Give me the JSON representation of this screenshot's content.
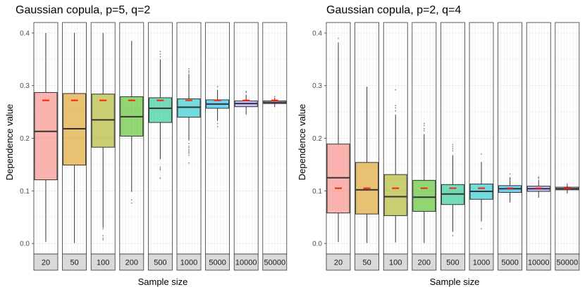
{
  "chart_data": [
    {
      "type": "box",
      "title": "Gaussian copula, p=5, q=2",
      "xlabel": "Sample size",
      "ylabel": "Dependence value",
      "ylim": [
        -0.02,
        0.42
      ],
      "yticks": [
        "0.0",
        "0.1",
        "0.2",
        "0.3",
        "0.4"
      ],
      "ytick_values": [
        0.0,
        0.1,
        0.2,
        0.3,
        0.4
      ],
      "true_value": 0.272,
      "panels": [
        {
          "label": "20",
          "color": "#F8766D",
          "q1": 0.121,
          "median": 0.213,
          "q3": 0.287,
          "whisker_low": 0.003,
          "whisker_high": 0.4,
          "outliers": []
        },
        {
          "label": "50",
          "color": "#D89000",
          "q1": 0.149,
          "median": 0.218,
          "q3": 0.285,
          "whisker_low": 0.001,
          "whisker_high": 0.4,
          "outliers": []
        },
        {
          "label": "100",
          "color": "#A3A500",
          "q1": 0.183,
          "median": 0.235,
          "q3": 0.284,
          "whisker_low": 0.03,
          "whisker_high": 0.4,
          "outliers": [
            0.028,
            0.015,
            0.01,
            0.007
          ]
        },
        {
          "label": "200",
          "color": "#39B600",
          "q1": 0.204,
          "median": 0.241,
          "q3": 0.279,
          "whisker_low": 0.098,
          "whisker_high": 0.385,
          "outliers": [
            0.083,
            0.077
          ]
        },
        {
          "label": "500",
          "color": "#00BF7D",
          "q1": 0.23,
          "median": 0.257,
          "q3": 0.277,
          "whisker_low": 0.16,
          "whisker_high": 0.35,
          "outliers": [
            0.365,
            0.36,
            0.355,
            0.145,
            0.142,
            0.14,
            0.124
          ]
        },
        {
          "label": "1000",
          "color": "#00BFC4",
          "q1": 0.24,
          "median": 0.259,
          "q3": 0.275,
          "whisker_low": 0.196,
          "whisker_high": 0.322,
          "outliers": [
            0.332,
            0.328,
            0.325,
            0.19,
            0.185,
            0.182,
            0.178,
            0.175,
            0.172,
            0.168,
            0.153
          ]
        },
        {
          "label": "5000",
          "color": "#00B0F6",
          "q1": 0.257,
          "median": 0.265,
          "q3": 0.273,
          "whisker_low": 0.233,
          "whisker_high": 0.292,
          "outliers": [
            0.298,
            0.228,
            0.222
          ]
        },
        {
          "label": "10000",
          "color": "#9590FF",
          "q1": 0.26,
          "median": 0.266,
          "q3": 0.271,
          "whisker_low": 0.245,
          "whisker_high": 0.283,
          "outliers": [
            0.289,
            0.287
          ]
        },
        {
          "label": "50000",
          "color": "#E76BF3",
          "q1": 0.266,
          "median": 0.268,
          "q3": 0.271,
          "whisker_low": 0.259,
          "whisker_high": 0.277,
          "outliers": [
            0.279
          ]
        }
      ]
    },
    {
      "type": "box",
      "title": "Gaussian copula, p=2, q=4",
      "xlabel": "Sample size",
      "ylabel": "Dependence value",
      "ylim": [
        -0.02,
        0.42
      ],
      "yticks": [
        "0.0",
        "0.1",
        "0.2",
        "0.3",
        "0.4"
      ],
      "ytick_values": [
        0.0,
        0.1,
        0.2,
        0.3,
        0.4
      ],
      "true_value": 0.105,
      "panels": [
        {
          "label": "20",
          "color": "#F8766D",
          "q1": 0.058,
          "median": 0.125,
          "q3": 0.189,
          "whisker_low": 0.003,
          "whisker_high": 0.382,
          "outliers": [
            0.39
          ]
        },
        {
          "label": "50",
          "color": "#D89000",
          "q1": 0.056,
          "median": 0.102,
          "q3": 0.154,
          "whisker_low": 0.001,
          "whisker_high": 0.298,
          "outliers": []
        },
        {
          "label": "100",
          "color": "#A3A500",
          "q1": 0.053,
          "median": 0.089,
          "q3": 0.131,
          "whisker_low": 0.002,
          "whisker_high": 0.245,
          "outliers": [
            0.292,
            0.262,
            0.258,
            0.252
          ]
        },
        {
          "label": "200",
          "color": "#39B600",
          "q1": 0.061,
          "median": 0.088,
          "q3": 0.12,
          "whisker_low": 0.001,
          "whisker_high": 0.208,
          "outliers": [
            0.228,
            0.224,
            0.218,
            0.214
          ]
        },
        {
          "label": "500",
          "color": "#00BF7D",
          "q1": 0.074,
          "median": 0.094,
          "q3": 0.112,
          "whisker_low": 0.022,
          "whisker_high": 0.168,
          "outliers": [
            0.188,
            0.184,
            0.18,
            0.176,
            0.015
          ]
        },
        {
          "label": "1000",
          "color": "#00BFC4",
          "q1": 0.084,
          "median": 0.099,
          "q3": 0.113,
          "whisker_low": 0.042,
          "whisker_high": 0.155,
          "outliers": [
            0.17,
            0.028
          ]
        },
        {
          "label": "5000",
          "color": "#00B0F6",
          "q1": 0.097,
          "median": 0.104,
          "q3": 0.11,
          "whisker_low": 0.078,
          "whisker_high": 0.126,
          "outliers": [
            0.132
          ]
        },
        {
          "label": "10000",
          "color": "#9590FF",
          "q1": 0.099,
          "median": 0.104,
          "q3": 0.109,
          "whisker_low": 0.087,
          "whisker_high": 0.121,
          "outliers": [
            0.126,
            0.124
          ]
        },
        {
          "label": "50000",
          "color": "#E76BF3",
          "q1": 0.102,
          "median": 0.104,
          "q3": 0.107,
          "whisker_low": 0.095,
          "whisker_high": 0.112,
          "outliers": [
            0.113
          ]
        }
      ]
    }
  ]
}
